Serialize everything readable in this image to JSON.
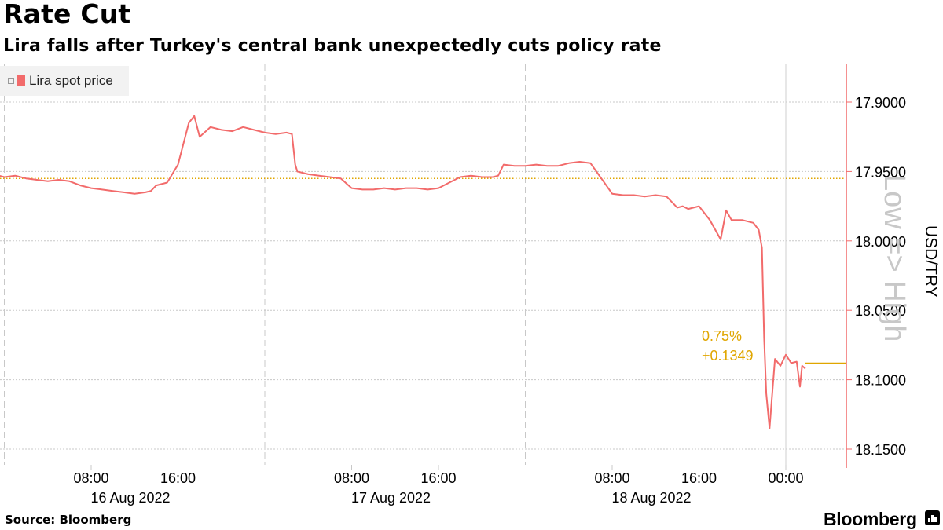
{
  "title": "Rate Cut",
  "subtitle": "Lira falls after Turkey's central bank unexpectedly cuts policy rate",
  "source": "Source: Bloomberg",
  "brand": "Bloomberg",
  "colors": {
    "series": "#f26b6b",
    "reference": "#e0a600",
    "grid": "#c8c8c8",
    "axis": "#f26b6b"
  },
  "chart_data": {
    "type": "line",
    "title": "Rate Cut",
    "subtitle": "Lira falls after Turkey's central bank unexpectedly cuts policy rate",
    "ylabel": "USD/TRY",
    "ylabel_secondary": "Low => High",
    "y_inverted": true,
    "ylim": [
      17.88,
      18.16
    ],
    "y_ticks": [
      "17.9000",
      "17.9500",
      "18.0000",
      "18.0500",
      "18.1000",
      "18.1500"
    ],
    "x_ticks": [
      {
        "time": "08:00",
        "date": "16 Aug 2022"
      },
      {
        "time": "16:00",
        "date": ""
      },
      {
        "time": "08:00",
        "date": "17 Aug 2022"
      },
      {
        "time": "16:00",
        "date": ""
      },
      {
        "time": "08:00",
        "date": "18 Aug 2022"
      },
      {
        "time": "16:00",
        "date": ""
      },
      {
        "time": "00:00",
        "date": ""
      }
    ],
    "xlim_hours": [
      0,
      78
    ],
    "reference_line": 17.955,
    "legend": {
      "position": "top-left",
      "entries": [
        "Lira spot price"
      ]
    },
    "annotation": {
      "pct": "0.75%",
      "change": "+0.1349",
      "level": 18.088
    },
    "series": [
      {
        "name": "Lira spot price",
        "points": [
          [
            0,
            17.955
          ],
          [
            1,
            17.952
          ],
          [
            2,
            17.954
          ],
          [
            3,
            17.953
          ],
          [
            4,
            17.955
          ],
          [
            5,
            17.956
          ],
          [
            6,
            17.957
          ],
          [
            7,
            17.956
          ],
          [
            8,
            17.957
          ],
          [
            9,
            17.96
          ],
          [
            10,
            17.962
          ],
          [
            11,
            17.963
          ],
          [
            12,
            17.964
          ],
          [
            13,
            17.965
          ],
          [
            14,
            17.966
          ],
          [
            15,
            17.965
          ],
          [
            15.5,
            17.964
          ],
          [
            16,
            17.96
          ],
          [
            17,
            17.958
          ],
          [
            18,
            17.945
          ],
          [
            19,
            17.915
          ],
          [
            19.5,
            17.91
          ],
          [
            20,
            17.925
          ],
          [
            21,
            17.918
          ],
          [
            22,
            17.92
          ],
          [
            23,
            17.921
          ],
          [
            24,
            17.918
          ],
          [
            25,
            17.92
          ],
          [
            26,
            17.922
          ],
          [
            27,
            17.923
          ],
          [
            28,
            17.922
          ],
          [
            28.5,
            17.923
          ],
          [
            28.8,
            17.945
          ],
          [
            29,
            17.95
          ],
          [
            30,
            17.952
          ],
          [
            31,
            17.953
          ],
          [
            32,
            17.954
          ],
          [
            33,
            17.955
          ],
          [
            34,
            17.962
          ],
          [
            35,
            17.963
          ],
          [
            36,
            17.963
          ],
          [
            37,
            17.962
          ],
          [
            38,
            17.963
          ],
          [
            39,
            17.962
          ],
          [
            40,
            17.962
          ],
          [
            41,
            17.963
          ],
          [
            42,
            17.962
          ],
          [
            43,
            17.958
          ],
          [
            44,
            17.954
          ],
          [
            45,
            17.953
          ],
          [
            46,
            17.954
          ],
          [
            47,
            17.954
          ],
          [
            47.5,
            17.953
          ],
          [
            48,
            17.945
          ],
          [
            49,
            17.946
          ],
          [
            50,
            17.946
          ],
          [
            51,
            17.945
          ],
          [
            52,
            17.946
          ],
          [
            53,
            17.946
          ],
          [
            54,
            17.944
          ],
          [
            55,
            17.943
          ],
          [
            56,
            17.944
          ],
          [
            57,
            17.955
          ],
          [
            58,
            17.966
          ],
          [
            59,
            17.967
          ],
          [
            60,
            17.967
          ],
          [
            61,
            17.968
          ],
          [
            62,
            17.967
          ],
          [
            63,
            17.968
          ],
          [
            64,
            17.976
          ],
          [
            64.5,
            17.975
          ],
          [
            65,
            17.977
          ],
          [
            66,
            17.975
          ],
          [
            67,
            17.985
          ],
          [
            68,
            17.999
          ],
          [
            68.5,
            17.978
          ],
          [
            69,
            17.985
          ],
          [
            70,
            17.985
          ],
          [
            71,
            17.987
          ],
          [
            71.5,
            17.992
          ],
          [
            71.8,
            18.005
          ],
          [
            72,
            18.07
          ],
          [
            72.2,
            18.11
          ],
          [
            72.5,
            18.135
          ],
          [
            72.8,
            18.105
          ],
          [
            73,
            18.085
          ],
          [
            73.5,
            18.09
          ],
          [
            74,
            18.082
          ],
          [
            74.5,
            18.088
          ],
          [
            75,
            18.087
          ],
          [
            75.3,
            18.105
          ],
          [
            75.5,
            18.09
          ],
          [
            75.8,
            18.092
          ]
        ]
      }
    ]
  }
}
